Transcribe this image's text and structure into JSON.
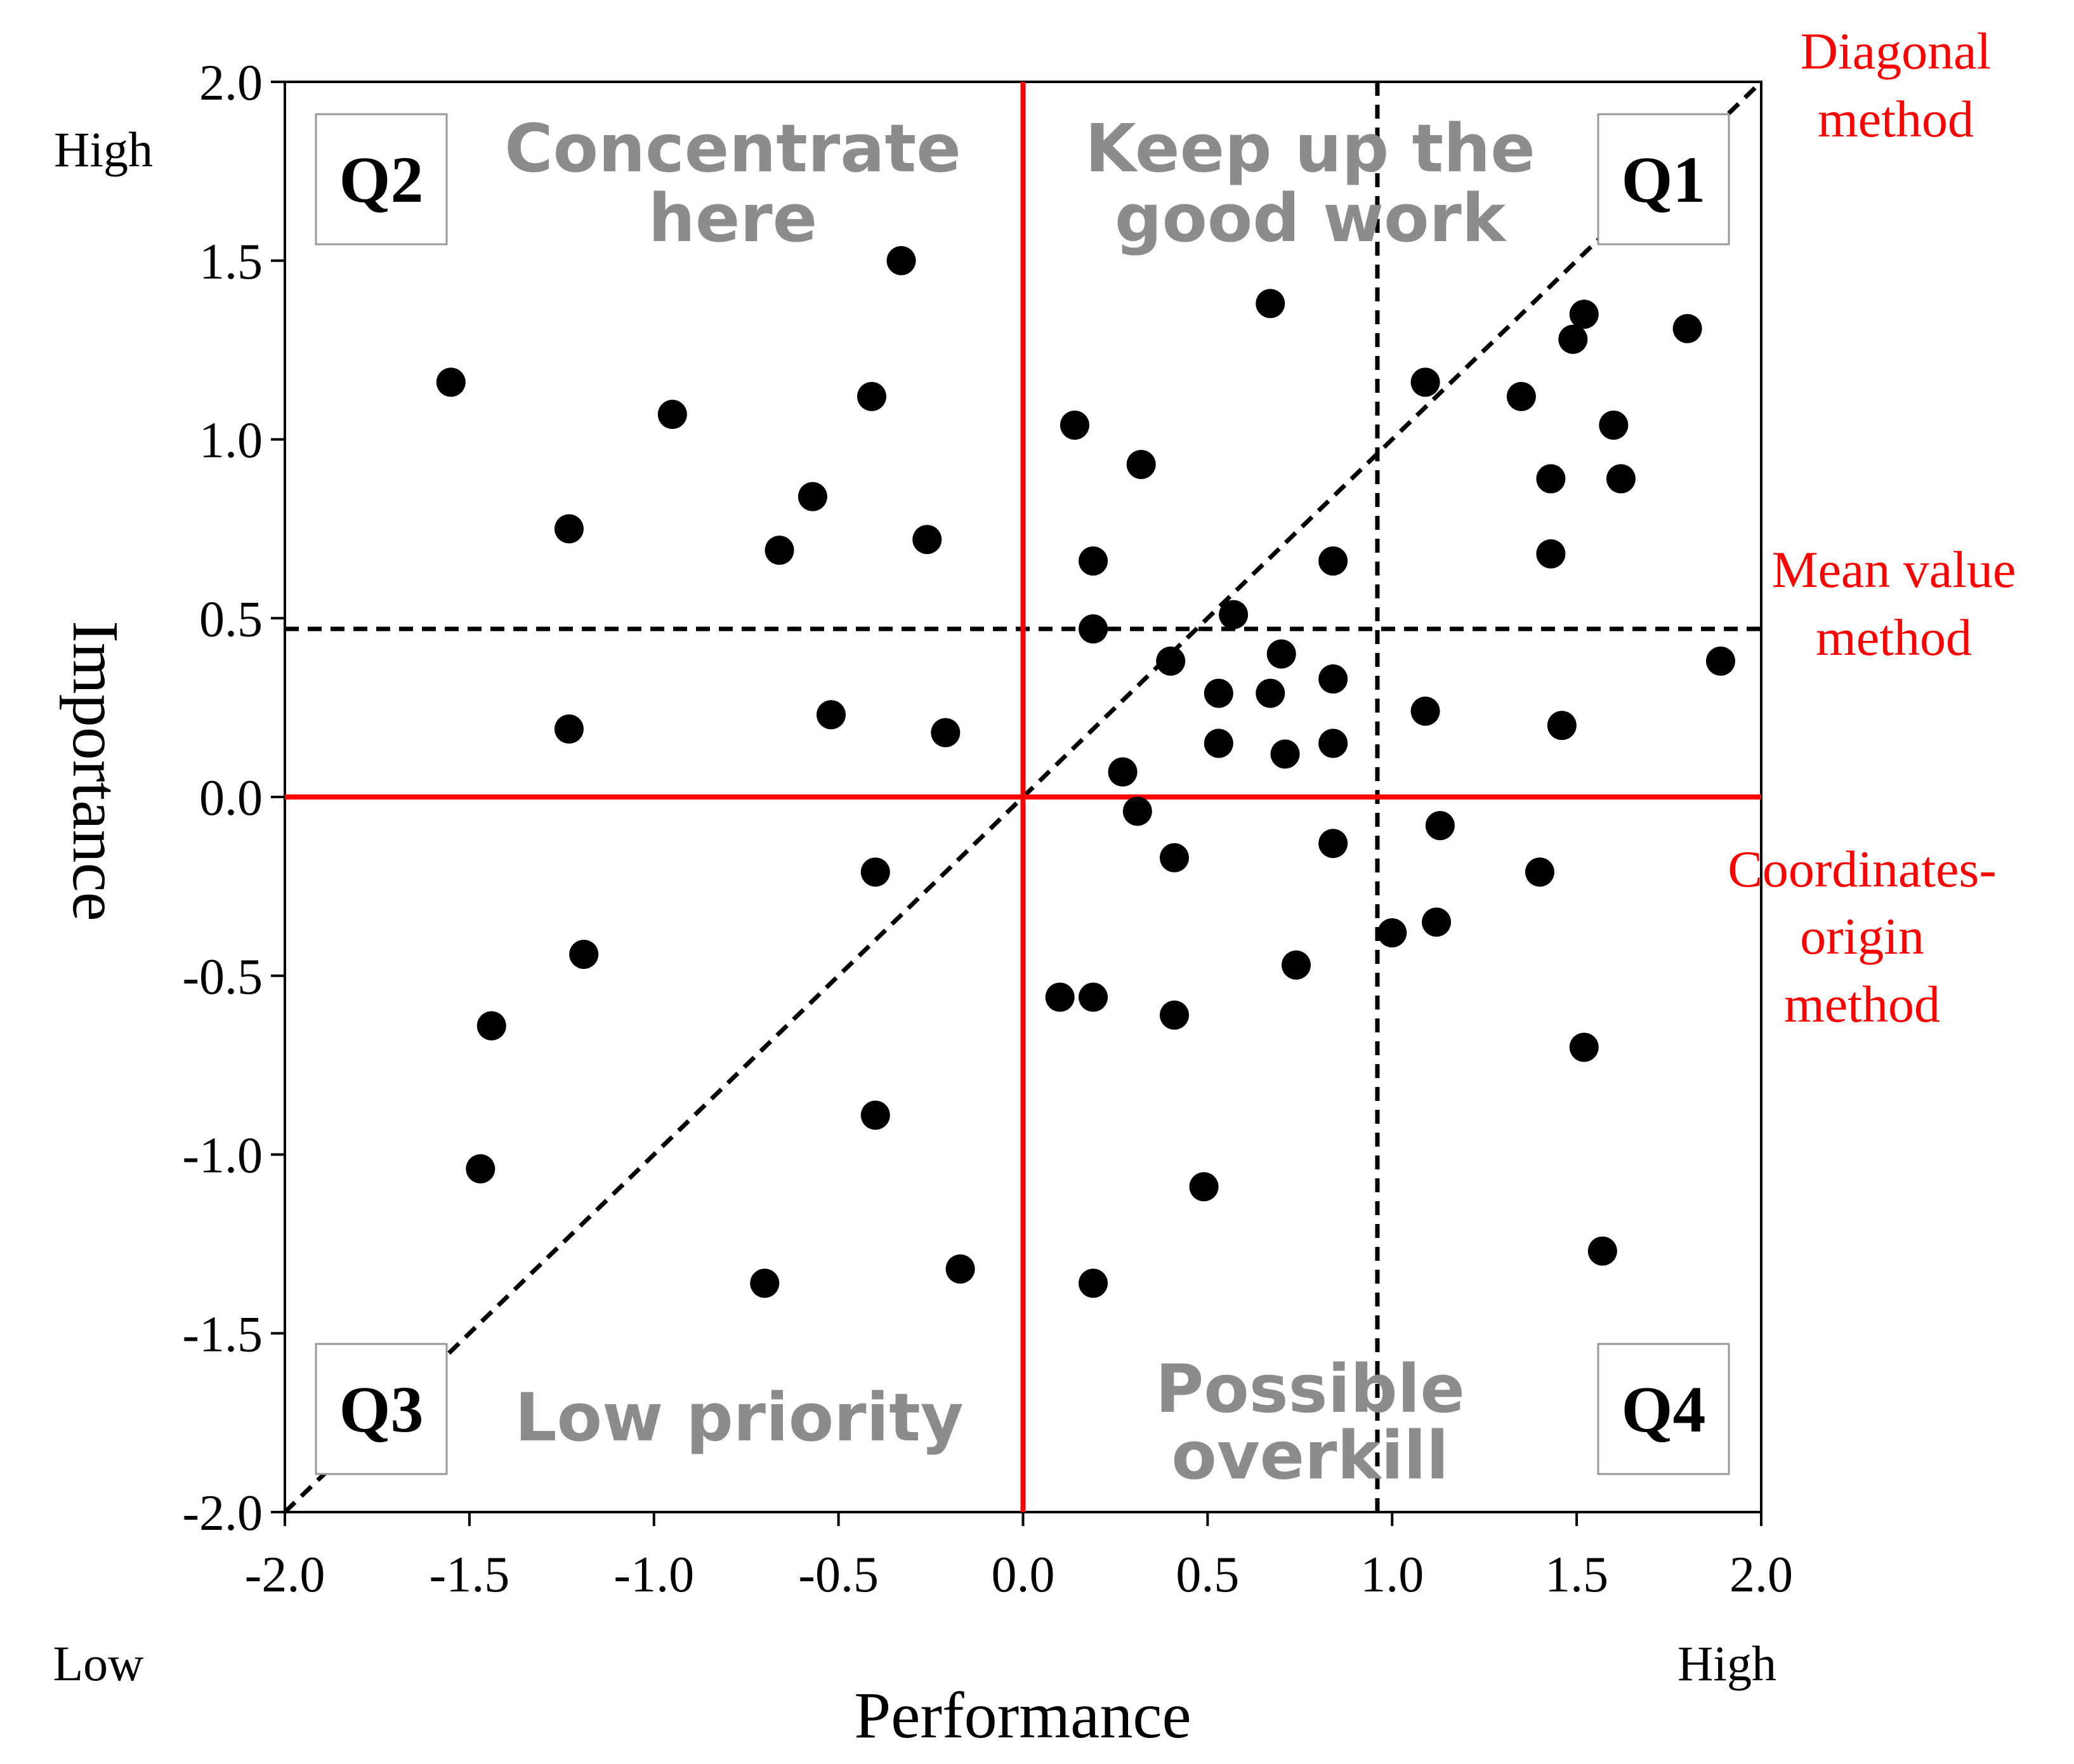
{
  "chart_data": {
    "type": "scatter",
    "xlabel": "Performance",
    "ylabel": "Importance",
    "xlim": [
      -2.0,
      2.0
    ],
    "ylim": [
      -2.0,
      2.0
    ],
    "x_ticks": [
      "-2.0",
      "-1.5",
      "-1.0",
      "-0.5",
      "0.0",
      "0.5",
      "1.0",
      "1.5",
      "2.0"
    ],
    "y_ticks": [
      "2.0",
      "1.5",
      "1.0",
      "0.5",
      "0.0",
      "-0.5",
      "-1.0",
      "-1.5",
      "-2.0"
    ],
    "x_low_label": "Low",
    "x_high_label": "High",
    "y_high_label": "High",
    "quadrants": {
      "q1": {
        "id": "Q1",
        "label_lines": [
          "Keep up the",
          "good work"
        ]
      },
      "q2": {
        "id": "Q2",
        "label_lines": [
          "Concentrate",
          "here"
        ]
      },
      "q3": {
        "id": "Q3",
        "label_lines": [
          "Low priority"
        ]
      },
      "q4": {
        "id": "Q4",
        "label_lines": [
          "Possible",
          "overkill"
        ]
      }
    },
    "methods": {
      "diagonal": {
        "lines": [
          "Diagonal",
          "method"
        ],
        "from": [
          -2.0,
          -2.0
        ],
        "to": [
          2.0,
          2.0
        ]
      },
      "mean_value": {
        "lines": [
          "Mean value",
          "method"
        ],
        "x": 0.96,
        "y": 0.47
      },
      "coordinates_origin": {
        "lines": [
          "Coordinates-",
          "origin",
          "method"
        ],
        "x": 0.0,
        "y": 0.0
      }
    },
    "colors": {
      "points": "#000000",
      "origin_lines": "#ff0000",
      "method_text": "#ff0000",
      "quadrant_text": "#8c8c8c",
      "dashed_lines": "#000000"
    },
    "points": [
      [
        -1.55,
        1.16
      ],
      [
        -0.33,
        1.5
      ],
      [
        -0.95,
        1.07
      ],
      [
        -0.41,
        1.12
      ],
      [
        -1.23,
        0.75
      ],
      [
        -0.57,
        0.84
      ],
      [
        -0.66,
        0.69
      ],
      [
        -0.26,
        0.72
      ],
      [
        -1.23,
        0.19
      ],
      [
        -0.52,
        0.23
      ],
      [
        -0.21,
        0.18
      ],
      [
        -0.4,
        -0.21
      ],
      [
        -1.19,
        -0.44
      ],
      [
        -1.44,
        -0.64
      ],
      [
        -0.4,
        -0.89
      ],
      [
        -1.47,
        -1.04
      ],
      [
        -0.7,
        -1.36
      ],
      [
        -0.17,
        -1.32
      ],
      [
        0.67,
        1.38
      ],
      [
        0.14,
        1.04
      ],
      [
        0.32,
        0.93
      ],
      [
        0.19,
        0.66
      ],
      [
        0.19,
        0.47
      ],
      [
        0.57,
        0.51
      ],
      [
        0.4,
        0.38
      ],
      [
        0.7,
        0.4
      ],
      [
        0.53,
        0.29
      ],
      [
        0.67,
        0.29
      ],
      [
        0.84,
        0.33
      ],
      [
        0.53,
        0.15
      ],
      [
        0.71,
        0.12
      ],
      [
        0.84,
        0.15
      ],
      [
        0.27,
        0.07
      ],
      [
        0.31,
        -0.04
      ],
      [
        0.41,
        -0.17
      ],
      [
        0.84,
        -0.13
      ],
      [
        0.74,
        -0.47
      ],
      [
        0.1,
        -0.56
      ],
      [
        0.19,
        -0.56
      ],
      [
        0.41,
        -0.61
      ],
      [
        0.49,
        -1.09
      ],
      [
        0.19,
        -1.36
      ],
      [
        1.09,
        1.16
      ],
      [
        1.52,
        1.35
      ],
      [
        1.49,
        1.28
      ],
      [
        1.8,
        1.31
      ],
      [
        1.35,
        1.12
      ],
      [
        1.6,
        1.04
      ],
      [
        1.43,
        0.89
      ],
      [
        1.62,
        0.89
      ],
      [
        1.43,
        0.68
      ],
      [
        0.84,
        0.66
      ],
      [
        1.89,
        0.38
      ],
      [
        1.09,
        0.24
      ],
      [
        1.46,
        0.2
      ],
      [
        1.13,
        -0.08
      ],
      [
        1.4,
        -0.21
      ],
      [
        1.12,
        -0.35
      ],
      [
        1.0,
        -0.38
      ],
      [
        1.52,
        -0.7
      ],
      [
        1.57,
        -1.27
      ]
    ]
  }
}
